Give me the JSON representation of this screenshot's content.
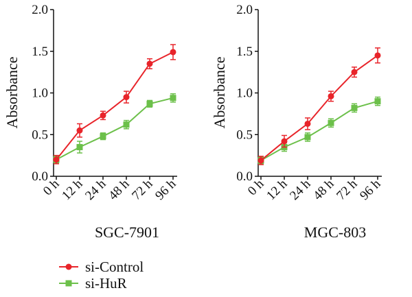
{
  "chart_data": [
    {
      "type": "line",
      "title": "SGC-7901",
      "ylabel": "Absorbance",
      "xlabel": "",
      "ylim": [
        0,
        2.0
      ],
      "yticks": [
        "0.0",
        "0.5",
        "1.0",
        "1.5",
        "2.0"
      ],
      "categories": [
        "0 h",
        "12 h",
        "24 h",
        "48 h",
        "72 h",
        "96 h"
      ],
      "series": [
        {
          "name": "si-Control",
          "color": "#e8242a",
          "marker": "circle",
          "values": [
            0.2,
            0.55,
            0.73,
            0.95,
            1.35,
            1.49
          ],
          "errors": [
            0.05,
            0.08,
            0.05,
            0.07,
            0.06,
            0.09
          ]
        },
        {
          "name": "si-HuR",
          "color": "#6cc04a",
          "marker": "square",
          "values": [
            0.2,
            0.35,
            0.48,
            0.62,
            0.87,
            0.94
          ],
          "errors": [
            0.04,
            0.07,
            0.04,
            0.05,
            0.04,
            0.05
          ]
        }
      ]
    },
    {
      "type": "line",
      "title": "MGC-803",
      "ylabel": "Absorbance",
      "xlabel": "",
      "ylim": [
        0,
        2.0
      ],
      "yticks": [
        "0.0",
        "0.5",
        "1.0",
        "1.5",
        "2.0"
      ],
      "categories": [
        "0 h",
        "12 h",
        "24 h",
        "48 h",
        "72 h",
        "96 h"
      ],
      "series": [
        {
          "name": "si-Control",
          "color": "#e8242a",
          "marker": "circle",
          "values": [
            0.19,
            0.42,
            0.63,
            0.96,
            1.25,
            1.45
          ],
          "errors": [
            0.05,
            0.07,
            0.07,
            0.06,
            0.06,
            0.09
          ]
        },
        {
          "name": "si-HuR",
          "color": "#6cc04a",
          "marker": "square",
          "values": [
            0.19,
            0.35,
            0.47,
            0.64,
            0.82,
            0.9
          ],
          "errors": [
            0.04,
            0.05,
            0.05,
            0.05,
            0.05,
            0.05
          ]
        }
      ]
    }
  ],
  "legend": [
    {
      "label": "si-Control",
      "color": "#e8242a",
      "marker": "circle"
    },
    {
      "label": "si-HuR",
      "color": "#6cc04a",
      "marker": "square"
    }
  ]
}
